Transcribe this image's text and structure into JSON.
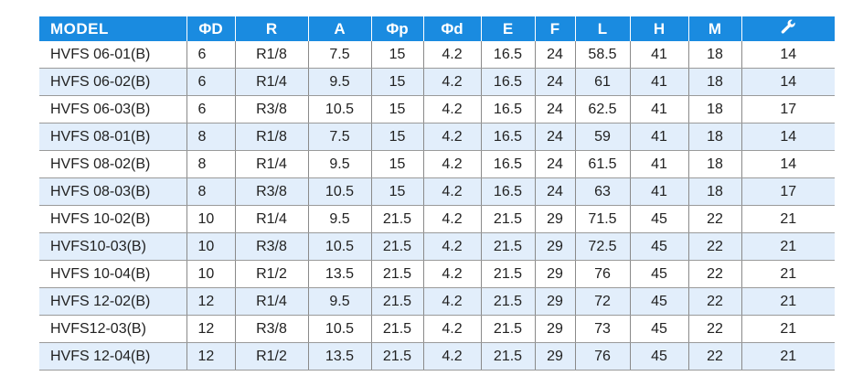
{
  "table": {
    "headers": [
      "MODEL",
      "ΦD",
      "R",
      "A",
      "Φp",
      "Φd",
      "E",
      "F",
      "L",
      "H",
      "M"
    ],
    "last_header_icon": "wrench-icon",
    "rows": [
      [
        "HVFS 06-01(B)",
        "6",
        "R1/8",
        "7.5",
        "15",
        "4.2",
        "16.5",
        "24",
        "58.5",
        "41",
        "18",
        "14"
      ],
      [
        "HVFS 06-02(B)",
        "6",
        "R1/4",
        "9.5",
        "15",
        "4.2",
        "16.5",
        "24",
        "61",
        "41",
        "18",
        "14"
      ],
      [
        "HVFS 06-03(B)",
        "6",
        "R3/8",
        "10.5",
        "15",
        "4.2",
        "16.5",
        "24",
        "62.5",
        "41",
        "18",
        "17"
      ],
      [
        "HVFS 08-01(B)",
        "8",
        "R1/8",
        "7.5",
        "15",
        "4.2",
        "16.5",
        "24",
        "59",
        "41",
        "18",
        "14"
      ],
      [
        "HVFS 08-02(B)",
        "8",
        "R1/4",
        "9.5",
        "15",
        "4.2",
        "16.5",
        "24",
        "61.5",
        "41",
        "18",
        "14"
      ],
      [
        "HVFS 08-03(B)",
        "8",
        "R3/8",
        "10.5",
        "15",
        "4.2",
        "16.5",
        "24",
        "63",
        "41",
        "18",
        "17"
      ],
      [
        "HVFS 10-02(B)",
        "10",
        "R1/4",
        "9.5",
        "21.5",
        "4.2",
        "21.5",
        "29",
        "71.5",
        "45",
        "22",
        "21"
      ],
      [
        "HVFS10-03(B)",
        "10",
        "R3/8",
        "10.5",
        "21.5",
        "4.2",
        "21.5",
        "29",
        "72.5",
        "45",
        "22",
        "21"
      ],
      [
        "HVFS 10-04(B)",
        "10",
        "R1/2",
        "13.5",
        "21.5",
        "4.2",
        "21.5",
        "29",
        "76",
        "45",
        "22",
        "21"
      ],
      [
        "HVFS 12-02(B)",
        "12",
        "R1/4",
        "9.5",
        "21.5",
        "4.2",
        "21.5",
        "29",
        "72",
        "45",
        "22",
        "21"
      ],
      [
        "HVFS12-03(B)",
        "12",
        "R3/8",
        "10.5",
        "21.5",
        "4.2",
        "21.5",
        "29",
        "73",
        "45",
        "22",
        "21"
      ],
      [
        "HVFS 12-04(B)",
        "12",
        "R1/2",
        "13.5",
        "21.5",
        "4.2",
        "21.5",
        "29",
        "76",
        "45",
        "22",
        "21"
      ]
    ]
  },
  "colors": {
    "header_bg": "#1a8be0",
    "alt_row_bg": "#e2eefb"
  }
}
